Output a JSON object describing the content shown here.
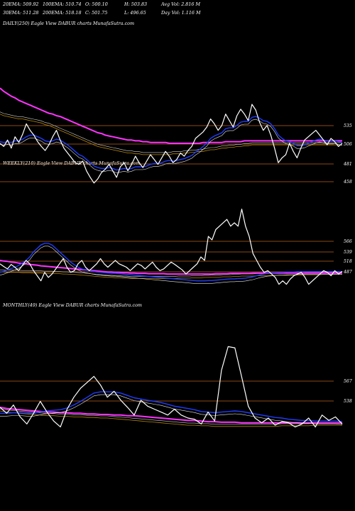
{
  "header": {
    "row1": [
      "20EMA: 509.92",
      "100EMA: 510.74",
      "O: 500.10",
      "H: 503.83",
      "Avg Vol: 2.816  M"
    ],
    "row2": [
      "30EMA: 511.28",
      "200EMA: 518.18",
      "C: 501.75",
      "L: 496.65",
      "Day Vol: 1.116  M"
    ]
  },
  "colors": {
    "background": "#000000",
    "price": "#ffffff",
    "ema_fast": "#1e3cff",
    "ema_slow": "#ff33ff",
    "ema_mid": "#b8860b",
    "level_line": "#b8601e",
    "text": "#ffffff"
  },
  "chart_data": [
    {
      "type": "line",
      "title": "DAILY(250) Eagle  View  DABUR charts MunafaSutra.com",
      "levels": [
        "535",
        "506",
        "481",
        "458"
      ],
      "series": [
        {
          "role": "price",
          "values": [
            504,
            500,
            508,
            498,
            512,
            505,
            515,
            528,
            520,
            514,
            506,
            500,
            495,
            502,
            512,
            520,
            508,
            498,
            492,
            486,
            480,
            478,
            482,
            470,
            462,
            455,
            460,
            468,
            472,
            478,
            470,
            462,
            475,
            480,
            470,
            478,
            488,
            480,
            474,
            482,
            490,
            484,
            478,
            486,
            494,
            488,
            480,
            484,
            492,
            488,
            495,
            500,
            510,
            514,
            518,
            524,
            534,
            528,
            520,
            526,
            540,
            532,
            524,
            538,
            546,
            540,
            532,
            552,
            545,
            530,
            520,
            526,
            514,
            498,
            480,
            486,
            490,
            504,
            494,
            486,
            498,
            508,
            512,
            516,
            520,
            514,
            508,
            502,
            510,
            506,
            500,
            504
          ]
        },
        {
          "role": "ema_fast",
          "values": [
            506,
            505,
            506,
            505,
            507,
            507,
            509,
            512,
            514,
            514,
            512,
            510,
            507,
            506,
            507,
            509,
            508,
            505,
            502,
            498,
            494,
            490,
            488,
            484,
            480,
            476,
            474,
            473,
            473,
            474,
            473,
            471,
            472,
            473,
            472,
            473,
            475,
            475,
            475,
            476,
            478,
            479,
            479,
            480,
            482,
            483,
            482,
            483,
            484,
            485,
            487,
            489,
            493,
            496,
            500,
            504,
            510,
            513,
            515,
            517,
            522,
            523,
            523,
            526,
            530,
            531,
            531,
            536,
            537,
            535,
            532,
            531,
            528,
            522,
            514,
            510,
            507,
            506,
            504,
            501,
            501,
            502,
            504,
            506,
            508,
            509,
            508,
            507,
            507,
            507,
            506,
            505
          ]
        },
        {
          "role": "ema_slow",
          "values": [
            572,
            568,
            565,
            562,
            560,
            557,
            555,
            553,
            551,
            549,
            547,
            545,
            543,
            541,
            540,
            538,
            537,
            535,
            533,
            531,
            529,
            527,
            525,
            523,
            521,
            519,
            517,
            516,
            514,
            513,
            512,
            511,
            510,
            509,
            508,
            508,
            507,
            507,
            506,
            506,
            505,
            505,
            505,
            505,
            505,
            504,
            504,
            504,
            504,
            504,
            504,
            504,
            504,
            504,
            505,
            505,
            505,
            505,
            505,
            505,
            506,
            506,
            506,
            506,
            506,
            507,
            507,
            507,
            507,
            507,
            507,
            507,
            507,
            507,
            507,
            507,
            507,
            507,
            507,
            507,
            507,
            507,
            507,
            507,
            507,
            507,
            507,
            507,
            507,
            507,
            507,
            507
          ]
        },
        {
          "role": "ema_mid",
          "values": [
            540,
            538,
            537,
            536,
            535,
            534,
            534,
            533,
            532,
            531,
            530,
            529,
            527,
            526,
            524,
            522,
            520,
            518,
            516,
            514,
            512,
            510,
            508,
            506,
            504,
            502,
            500,
            499,
            498,
            497,
            496,
            495,
            494,
            493,
            492,
            492,
            491,
            491,
            490,
            490,
            490,
            490,
            490,
            490,
            490,
            490,
            491,
            491,
            491,
            492,
            492,
            493,
            493,
            494,
            494,
            495,
            496,
            496,
            497,
            498,
            498,
            499,
            499,
            500,
            500,
            501,
            501,
            502,
            502,
            502,
            502,
            502,
            502,
            502,
            502,
            502,
            502,
            502,
            502,
            502,
            502,
            502,
            502,
            502,
            502,
            502,
            502,
            502,
            502,
            502,
            502,
            502
          ]
        }
      ]
    },
    {
      "type": "line",
      "title": "WEEKLY(210) Eagle  View  DABUR charts MunafaSutra.com",
      "levels": [
        "566",
        "539",
        "518",
        "487"
      ],
      "series": [
        {
          "role": "price",
          "values": [
            530,
            522,
            515,
            528,
            520,
            510,
            525,
            540,
            530,
            510,
            495,
            480,
            505,
            490,
            500,
            515,
            530,
            545,
            520,
            505,
            510,
            530,
            540,
            520,
            510,
            520,
            530,
            545,
            530,
            520,
            530,
            540,
            530,
            525,
            520,
            510,
            520,
            530,
            525,
            515,
            525,
            535,
            520,
            510,
            515,
            525,
            535,
            528,
            520,
            512,
            500,
            510,
            520,
            530,
            550,
            540,
            610,
            600,
            630,
            640,
            650,
            660,
            640,
            650,
            640,
            690,
            640,
            610,
            560,
            540,
            520,
            505,
            510,
            500,
            490,
            470,
            480,
            470,
            485,
            495,
            500,
            505,
            490,
            470,
            480,
            490,
            500,
            510,
            505,
            495,
            510,
            500,
            508
          ]
        },
        {
          "role": "ema_fast",
          "values": [
            505,
            508,
            512,
            516,
            520,
            525,
            532,
            540,
            550,
            565,
            575,
            585,
            590,
            590,
            585,
            575,
            565,
            555,
            545,
            535,
            527,
            520,
            515,
            512,
            510,
            508,
            506,
            505,
            504,
            503,
            502,
            502,
            501,
            500,
            499,
            498,
            497,
            496,
            495,
            494,
            493,
            492,
            491,
            490,
            489,
            488,
            487,
            486,
            485,
            484,
            483,
            482,
            481,
            480,
            480,
            480,
            481,
            481,
            482,
            483,
            484,
            485,
            486,
            486,
            487,
            487,
            488,
            490,
            492,
            495,
            498,
            500,
            502,
            503,
            504,
            505,
            505,
            506,
            506,
            506,
            507,
            507,
            507,
            507,
            507,
            507,
            507,
            507,
            507,
            507,
            507,
            507,
            507
          ]
        },
        {
          "role": "ema_slow",
          "values": [
            540,
            538,
            537,
            535,
            534,
            532,
            531,
            530,
            528,
            527,
            526,
            524,
            523,
            522,
            521,
            520,
            519,
            518,
            517,
            516,
            515,
            514,
            513,
            512,
            511,
            510,
            509,
            508,
            507,
            506,
            506,
            505,
            505,
            504,
            504,
            503,
            503,
            502,
            502,
            502,
            501,
            501,
            501,
            501,
            501,
            500,
            500,
            500,
            500,
            500,
            500,
            500,
            500,
            500,
            500,
            500,
            500,
            500,
            501,
            501,
            501,
            501,
            502,
            502,
            502,
            502,
            502,
            502,
            503,
            503,
            503,
            503,
            503,
            503,
            503,
            503,
            503,
            503,
            503,
            503,
            503,
            503,
            503,
            503,
            503,
            503,
            503,
            503,
            503,
            503,
            503,
            503,
            503
          ]
        },
        {
          "role": "ema_mid",
          "values": [
            506,
            506,
            505,
            505,
            505,
            505,
            504,
            504,
            504,
            503,
            503,
            503,
            502,
            502,
            502,
            501,
            501,
            500,
            500,
            499,
            499,
            498,
            497,
            496,
            495,
            494,
            493,
            492,
            491,
            490,
            490,
            489,
            489,
            488,
            488,
            487,
            487,
            487,
            487,
            487,
            487,
            487,
            487,
            487,
            487,
            487,
            487,
            487,
            488,
            488,
            488,
            488,
            489,
            489,
            489,
            490,
            490,
            491,
            491,
            491,
            492,
            492,
            492,
            493,
            493,
            494,
            494,
            494,
            494,
            495,
            495,
            495,
            495,
            496,
            496,
            496,
            496,
            496,
            497,
            497,
            497,
            497,
            498,
            498,
            498,
            498,
            498,
            499,
            499,
            499,
            499,
            499,
            499
          ]
        }
      ]
    },
    {
      "type": "line",
      "title": "MONTHLY(49) Eagle  View  DABUR charts MunafaSutra.com",
      "levels": [
        "567",
        "538"
      ],
      "series": [
        {
          "role": "price",
          "values": [
            548,
            538,
            552,
            532,
            520,
            538,
            558,
            540,
            525,
            515,
            545,
            565,
            580,
            590,
            600,
            585,
            565,
            575,
            560,
            548,
            535,
            560,
            550,
            545,
            540,
            535,
            545,
            535,
            530,
            528,
            520,
            540,
            525,
            610,
            650,
            648,
            600,
            550,
            530,
            522,
            530,
            518,
            524,
            522,
            515,
            520,
            530,
            515,
            535,
            526,
            532,
            520
          ]
        },
        {
          "role": "ema_fast",
          "values": [
            538,
            538,
            539,
            539,
            538,
            538,
            540,
            542,
            543,
            544,
            547,
            552,
            558,
            565,
            572,
            574,
            574,
            574,
            572,
            568,
            564,
            562,
            560,
            558,
            556,
            553,
            550,
            548,
            546,
            544,
            541,
            540,
            539,
            540,
            541,
            542,
            541,
            539,
            537,
            535,
            533,
            531,
            530,
            528,
            527,
            526,
            526,
            525,
            525,
            525,
            525,
            524
          ]
        },
        {
          "role": "ema_slow",
          "values": [
            548,
            546,
            545,
            544,
            543,
            542,
            541,
            540,
            540,
            539,
            539,
            538,
            538,
            537,
            537,
            536,
            536,
            535,
            535,
            534,
            534,
            533,
            532,
            531,
            530,
            529,
            528,
            527,
            526,
            526,
            525,
            524,
            524,
            523,
            523,
            523,
            522,
            522,
            522,
            522,
            522,
            522,
            522,
            522,
            522,
            522,
            522,
            522,
            522,
            522,
            522,
            522
          ]
        },
        {
          "role": "ema_mid",
          "values": [
            542,
            540,
            539,
            538,
            537,
            536,
            535,
            534,
            534,
            533,
            533,
            532,
            532,
            531,
            531,
            530,
            530,
            529,
            528,
            527,
            526,
            525,
            524,
            523,
            522,
            521,
            520,
            519,
            518,
            518,
            517,
            517,
            516,
            516,
            516,
            516,
            516,
            516,
            516,
            516,
            516,
            516,
            517,
            517,
            517,
            517,
            517,
            518,
            518,
            518,
            518,
            518
          ]
        }
      ]
    }
  ]
}
